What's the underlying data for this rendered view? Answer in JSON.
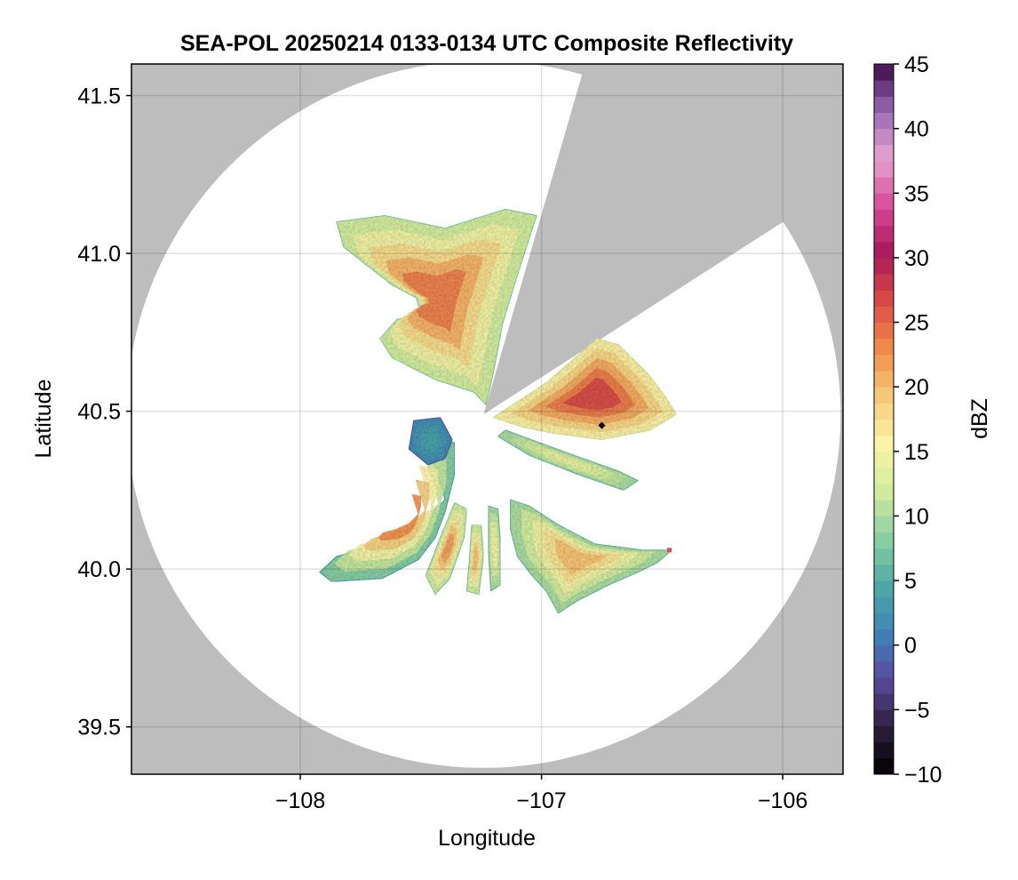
{
  "chart_data": {
    "type": "heatmap",
    "title": "SEA-POL 20250214 0133-0134 UTC Composite Reflectivity",
    "xlabel": "Longitude",
    "ylabel": "Latitude",
    "xlim": [
      -108.7,
      -105.75
    ],
    "ylim": [
      39.35,
      41.6
    ],
    "x_ticks": [
      -108,
      -107,
      -106
    ],
    "x_tick_labels": [
      "−108",
      "−107",
      "−106"
    ],
    "y_ticks": [
      39.5,
      40.0,
      40.5,
      41.0,
      41.5
    ],
    "y_tick_labels": [
      "39.5",
      "40.0",
      "40.5",
      "41.0",
      "41.5"
    ],
    "grid": true,
    "background_color": "#bdbdbd",
    "radar": {
      "center_lon": -107.24,
      "center_lat": 40.49,
      "coverage_radius_lat_deg": 1.12,
      "coverage_radius_lon_deg": 1.48,
      "blocked_sectors_deg_from_north": [
        [
          16,
          57
        ]
      ]
    },
    "colorbar": {
      "label": "dBZ",
      "min": -10,
      "max": 45,
      "ticks": [
        -10,
        -5,
        0,
        5,
        10,
        15,
        20,
        25,
        30,
        35,
        40,
        45
      ],
      "tick_labels": [
        "−10",
        "−5",
        "0",
        "5",
        "10",
        "15",
        "20",
        "25",
        "30",
        "35",
        "40",
        "45"
      ],
      "colormap": "Spectral_r",
      "color_stops": [
        "#000000",
        "#2d1e3e",
        "#5a4a9c",
        "#3f83b8",
        "#4fa9a5",
        "#8ccfa3",
        "#d3ec9e",
        "#fbf3a7",
        "#f5c97a",
        "#f08a4b",
        "#d94c46",
        "#a6195a",
        "#d84a97",
        "#e6a4d0",
        "#9a6ab5",
        "#3d0a47"
      ]
    },
    "markers": [
      {
        "lon": -106.75,
        "lat": 40.455,
        "color": "#000000",
        "shape": "diamond"
      },
      {
        "lon": -106.47,
        "lat": 40.06,
        "color": "#e8455d",
        "shape": "square"
      }
    ],
    "echo_regions": [
      {
        "name": "north",
        "dbz_core": 24,
        "dbz_edge": 12,
        "polygon": [
          [
            -107.85,
            41.1
          ],
          [
            -107.65,
            41.12
          ],
          [
            -107.4,
            41.08
          ],
          [
            -107.15,
            41.14
          ],
          [
            -107.02,
            41.12
          ],
          [
            -107.1,
            40.93
          ],
          [
            -107.16,
            40.78
          ],
          [
            -107.2,
            40.62
          ],
          [
            -107.23,
            40.52
          ],
          [
            -107.28,
            40.56
          ],
          [
            -107.44,
            40.6
          ],
          [
            -107.62,
            40.67
          ],
          [
            -107.67,
            40.73
          ],
          [
            -107.6,
            40.79
          ],
          [
            -107.5,
            40.81
          ],
          [
            -107.52,
            40.86
          ],
          [
            -107.62,
            40.9
          ],
          [
            -107.72,
            40.96
          ],
          [
            -107.82,
            41.02
          ]
        ]
      },
      {
        "name": "northeast",
        "dbz_core": 27,
        "dbz_edge": 16,
        "polygon": [
          [
            -107.2,
            40.48
          ],
          [
            -106.98,
            40.59
          ],
          [
            -106.86,
            40.67
          ],
          [
            -106.77,
            40.73
          ],
          [
            -106.68,
            40.71
          ],
          [
            -106.56,
            40.62
          ],
          [
            -106.49,
            40.55
          ],
          [
            -106.44,
            40.49
          ],
          [
            -106.55,
            40.44
          ],
          [
            -106.75,
            40.41
          ],
          [
            -106.95,
            40.43
          ],
          [
            -107.08,
            40.45
          ]
        ]
      },
      {
        "name": "east-band",
        "dbz_core": 14,
        "dbz_edge": 10,
        "polygon": [
          [
            -107.15,
            40.44
          ],
          [
            -106.9,
            40.37
          ],
          [
            -106.68,
            40.31
          ],
          [
            -106.6,
            40.28
          ],
          [
            -106.66,
            40.25
          ],
          [
            -106.85,
            40.3
          ],
          [
            -107.05,
            40.36
          ],
          [
            -107.18,
            40.42
          ]
        ]
      },
      {
        "name": "southwest",
        "dbz_core": 23,
        "dbz_edge": 8,
        "polygon": [
          [
            -107.48,
            40.42
          ],
          [
            -107.44,
            40.32
          ],
          [
            -107.4,
            40.22
          ],
          [
            -107.52,
            40.13
          ],
          [
            -107.7,
            40.07
          ],
          [
            -107.85,
            40.04
          ],
          [
            -107.92,
            39.99
          ],
          [
            -107.87,
            39.96
          ],
          [
            -107.66,
            39.97
          ],
          [
            -107.51,
            40.03
          ],
          [
            -107.44,
            40.1
          ],
          [
            -107.4,
            40.18
          ],
          [
            -107.36,
            40.3
          ],
          [
            -107.36,
            40.4
          ]
        ]
      },
      {
        "name": "south-streak-1",
        "dbz_core": 22,
        "dbz_edge": 12,
        "polygon": [
          [
            -107.36,
            40.21
          ],
          [
            -107.42,
            40.1
          ],
          [
            -107.48,
            39.98
          ],
          [
            -107.44,
            39.92
          ],
          [
            -107.38,
            39.97
          ],
          [
            -107.32,
            40.1
          ],
          [
            -107.31,
            40.19
          ]
        ]
      },
      {
        "name": "south-streak-2",
        "dbz_core": 20,
        "dbz_edge": 12,
        "polygon": [
          [
            -107.29,
            40.14
          ],
          [
            -107.3,
            40.02
          ],
          [
            -107.31,
            39.93
          ],
          [
            -107.26,
            39.92
          ],
          [
            -107.24,
            40.04
          ],
          [
            -107.25,
            40.14
          ]
        ]
      },
      {
        "name": "south-streak-3",
        "dbz_core": 16,
        "dbz_edge": 10,
        "polygon": [
          [
            -107.22,
            40.2
          ],
          [
            -107.22,
            40.05
          ],
          [
            -107.21,
            39.93
          ],
          [
            -107.17,
            39.95
          ],
          [
            -107.17,
            40.08
          ],
          [
            -107.18,
            40.19
          ]
        ]
      },
      {
        "name": "southeast",
        "dbz_core": 20,
        "dbz_edge": 10,
        "polygon": [
          [
            -107.13,
            40.22
          ],
          [
            -107.05,
            40.2
          ],
          [
            -106.93,
            40.14
          ],
          [
            -106.78,
            40.08
          ],
          [
            -106.58,
            40.06
          ],
          [
            -106.46,
            40.06
          ],
          [
            -106.52,
            40.02
          ],
          [
            -106.6,
            39.99
          ],
          [
            -106.72,
            39.95
          ],
          [
            -106.85,
            39.9
          ],
          [
            -106.93,
            39.86
          ],
          [
            -106.98,
            39.93
          ],
          [
            -107.04,
            39.98
          ],
          [
            -107.1,
            40.04
          ],
          [
            -107.13,
            40.13
          ]
        ]
      },
      {
        "name": "west-low",
        "dbz_core": 4,
        "dbz_edge": 2,
        "polygon": [
          [
            -107.53,
            40.47
          ],
          [
            -107.42,
            40.48
          ],
          [
            -107.37,
            40.41
          ],
          [
            -107.4,
            40.35
          ],
          [
            -107.47,
            40.33
          ],
          [
            -107.55,
            40.38
          ]
        ]
      }
    ]
  }
}
